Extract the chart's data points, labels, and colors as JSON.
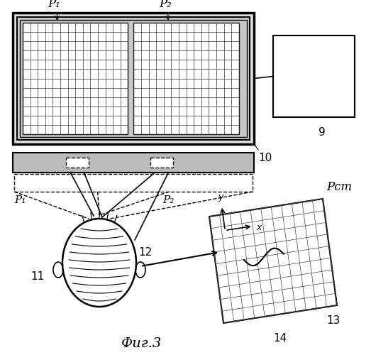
{
  "bg_color": "#ffffff",
  "line_color": "#000000",
  "title": "Фиг.3",
  "labels": {
    "P1_top": "P₁",
    "P2_top": "P₂",
    "P1_mid": "P₁",
    "P2_mid": "P₂",
    "Pst": "Pст",
    "num_9": "9",
    "num_10": "10",
    "num_11": "11",
    "num_12": "12",
    "num_13": "13",
    "num_14": "14",
    "x_label": "x",
    "y_label": "y"
  }
}
